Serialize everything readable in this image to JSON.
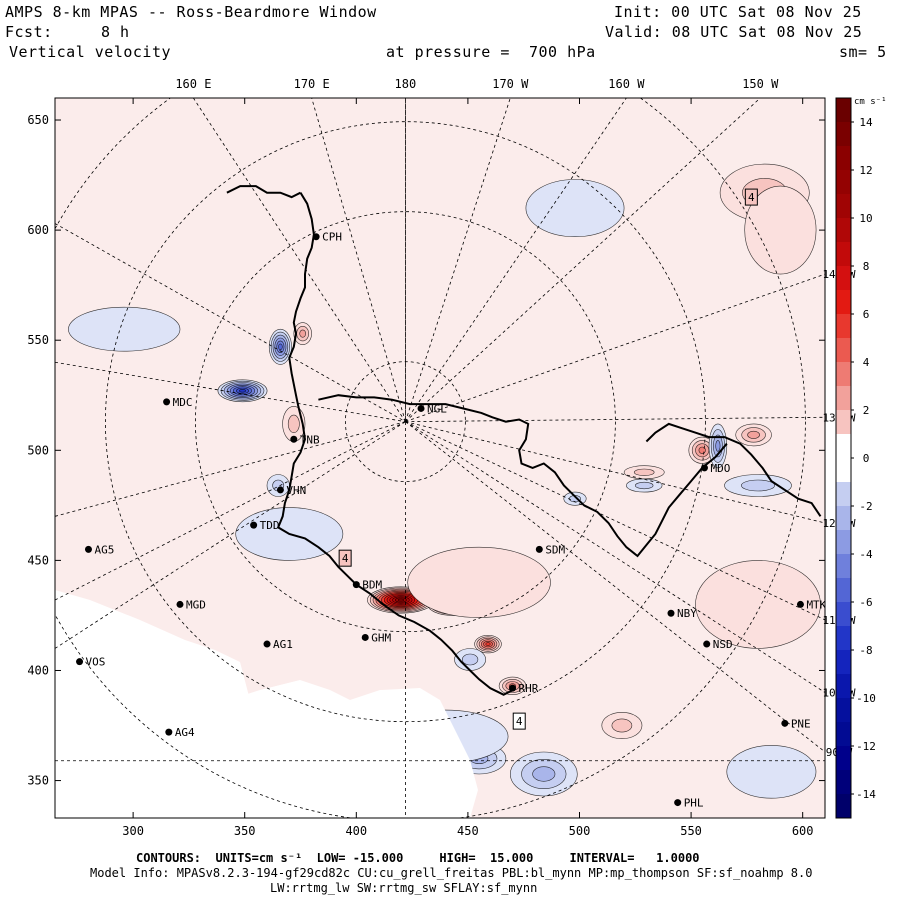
{
  "header": {
    "title": "AMPS 8-km MPAS -- Ross-Beardmore Window",
    "init": "Init: 00 UTC Sat 08 Nov 25",
    "fcst_label": "Fcst:",
    "fcst_value": "8 h",
    "valid": "Valid: 08 UTC Sat 08 Nov 25",
    "variable": "Vertical velocity",
    "pressure": "at pressure =  700 hPa",
    "smoothing": "sm= 5"
  },
  "footer": {
    "contours": "CONTOURS:  UNITS=cm s⁻¹  LOW= -15.000     HIGH=  15.000     INTERVAL=   1.0000",
    "model_info": "Model Info: MPASv8.2.3-194-gf29cd82c CU:cu_grell_freitas PBL:bl_mynn MP:mp_thompson SF:sf_noahmp 8.0",
    "model_info2": "LW:rrtmg_lw SW:rrtmg_sw SFLAY:sf_mynn"
  },
  "colors": {
    "pos_strong": "#8b0000",
    "pos_light": "#fbe0de",
    "neg_strong": "#00008b",
    "neg_light": "#dde3f7",
    "zero": "#ffffff"
  },
  "chart_data": {
    "type": "heatmap",
    "title": "Vertical velocity at pressure = 700 hPa",
    "x_axis": {
      "range": [
        265,
        610
      ],
      "ticks": [
        300,
        350,
        400,
        450,
        500,
        550,
        600
      ],
      "tick_labels": [
        "300",
        "350",
        "400",
        "450",
        "500",
        "550",
        "600"
      ]
    },
    "y_axis": {
      "range": [
        333,
        660
      ],
      "ticks": [
        350,
        400,
        450,
        500,
        550,
        600,
        650
      ],
      "tick_labels": [
        "350",
        "400",
        "450",
        "500",
        "550",
        "600",
        "650"
      ]
    },
    "longitude_labels_top": [
      {
        "label": "160 E",
        "x": 327
      },
      {
        "label": "170 E",
        "x": 380
      },
      {
        "label": "180",
        "x": 422
      },
      {
        "label": "170 W",
        "x": 469
      },
      {
        "label": "160 W",
        "x": 521
      },
      {
        "label": "150 W",
        "x": 581
      }
    ],
    "longitude_labels_right": [
      {
        "label": "140 W",
        "y": 580
      },
      {
        "label": "130 W",
        "y": 515
      },
      {
        "label": "120 W",
        "y": 467
      },
      {
        "label": "110 W",
        "y": 423
      },
      {
        "label": "100 W",
        "y": 390
      },
      {
        "label": "90 W",
        "y": 363
      }
    ],
    "colorbar": {
      "units": "cm s⁻¹",
      "low": -15,
      "high": 15,
      "interval": 1,
      "tick_labels": [
        14,
        12,
        10,
        8,
        6,
        4,
        2,
        0,
        -2,
        -4,
        -6,
        -8,
        -10,
        -12,
        -14
      ]
    },
    "stations": [
      {
        "id": "CPH",
        "x": 382,
        "y": 597
      },
      {
        "id": "MDC",
        "x": 315,
        "y": 522
      },
      {
        "id": "TNB",
        "x": 372,
        "y": 505
      },
      {
        "id": "NGL",
        "x": 429,
        "y": 519
      },
      {
        "id": "VHN",
        "x": 366,
        "y": 482
      },
      {
        "id": "TDD",
        "x": 354,
        "y": 466
      },
      {
        "id": "AG5",
        "x": 280,
        "y": 455
      },
      {
        "id": "SDM",
        "x": 482,
        "y": 455
      },
      {
        "id": "BDM",
        "x": 400,
        "y": 439
      },
      {
        "id": "MGD",
        "x": 321,
        "y": 430
      },
      {
        "id": "NBY",
        "x": 541,
        "y": 426
      },
      {
        "id": "MTK",
        "x": 599,
        "y": 430
      },
      {
        "id": "GHM",
        "x": 404,
        "y": 415
      },
      {
        "id": "AG1",
        "x": 360,
        "y": 412
      },
      {
        "id": "NSD",
        "x": 557,
        "y": 412
      },
      {
        "id": "VOS",
        "x": 276,
        "y": 404
      },
      {
        "id": "MDO",
        "x": 556,
        "y": 492
      },
      {
        "id": "RHR",
        "x": 470,
        "y": 392
      },
      {
        "id": "PNE",
        "x": 592,
        "y": 376
      },
      {
        "id": "AG4",
        "x": 316,
        "y": 372
      },
      {
        "id": "PHL",
        "x": 544,
        "y": 340
      }
    ],
    "extrema_labels": [
      {
        "text": "4",
        "x": 577,
        "y": 615,
        "sign": "positive"
      },
      {
        "text": "4",
        "x": 395,
        "y": 451,
        "sign": "positive"
      },
      {
        "text": "4",
        "x": 473,
        "y": 377,
        "sign": "negative"
      }
    ],
    "features": [
      {
        "sign": "positive",
        "value": 2,
        "x": 583,
        "y": 617,
        "rx": 20,
        "ry": 13
      },
      {
        "sign": "positive",
        "value": 12,
        "x": 420,
        "y": 432,
        "rx": 15,
        "ry": 6
      },
      {
        "sign": "positive",
        "value": 10,
        "x": 443,
        "y": 430,
        "rx": 11,
        "ry": 5
      },
      {
        "sign": "positive",
        "value": 6,
        "x": 459,
        "y": 412,
        "rx": 6,
        "ry": 4
      },
      {
        "sign": "positive",
        "value": 4,
        "x": 470,
        "y": 393,
        "rx": 6,
        "ry": 4
      },
      {
        "sign": "positive",
        "value": 4,
        "x": 555,
        "y": 500,
        "rx": 6,
        "ry": 6
      },
      {
        "sign": "positive",
        "value": 3,
        "x": 578,
        "y": 507,
        "rx": 8,
        "ry": 5
      },
      {
        "sign": "positive",
        "value": 2,
        "x": 529,
        "y": 490,
        "rx": 9,
        "ry": 3
      },
      {
        "sign": "positive",
        "value": 3,
        "x": 376,
        "y": 553,
        "rx": 4,
        "ry": 5
      },
      {
        "sign": "positive",
        "value": 2,
        "x": 372,
        "y": 512,
        "rx": 5,
        "ry": 8
      },
      {
        "sign": "positive",
        "value": 2,
        "x": 519,
        "y": 375,
        "rx": 9,
        "ry": 6
      },
      {
        "sign": "negative",
        "value": -8,
        "x": 349,
        "y": 527,
        "rx": 11,
        "ry": 5
      },
      {
        "sign": "negative",
        "value": -6,
        "x": 366,
        "y": 547,
        "rx": 5,
        "ry": 8
      },
      {
        "sign": "negative",
        "value": -4,
        "x": 386,
        "y": 461,
        "rx": 7,
        "ry": 4
      },
      {
        "sign": "negative",
        "value": -4,
        "x": 562,
        "y": 502,
        "rx": 4,
        "ry": 10
      },
      {
        "sign": "negative",
        "value": -3,
        "x": 484,
        "y": 353,
        "rx": 15,
        "ry": 10
      },
      {
        "sign": "negative",
        "value": -3,
        "x": 455,
        "y": 360,
        "rx": 12,
        "ry": 7
      },
      {
        "sign": "negative",
        "value": -2,
        "x": 451,
        "y": 405,
        "rx": 7,
        "ry": 5
      },
      {
        "sign": "negative",
        "value": -2,
        "x": 498,
        "y": 478,
        "rx": 5,
        "ry": 3
      },
      {
        "sign": "negative",
        "value": -2,
        "x": 529,
        "y": 484,
        "rx": 8,
        "ry": 3
      },
      {
        "sign": "negative",
        "value": -2,
        "x": 580,
        "y": 484,
        "rx": 15,
        "ry": 5
      },
      {
        "sign": "negative",
        "value": -2,
        "x": 365,
        "y": 484,
        "rx": 5,
        "ry": 5
      },
      {
        "sign": "negative",
        "value": -1,
        "x": 498,
        "y": 610,
        "rx": 22,
        "ry": 13
      },
      {
        "sign": "negative",
        "value": -1,
        "x": 296,
        "y": 555,
        "rx": 25,
        "ry": 10
      },
      {
        "sign": "negative",
        "value": -1,
        "x": 370,
        "y": 462,
        "rx": 24,
        "ry": 12
      },
      {
        "sign": "negative",
        "value": -1,
        "x": 440,
        "y": 370,
        "rx": 28,
        "ry": 12
      },
      {
        "sign": "negative",
        "value": -1,
        "x": 586,
        "y": 354,
        "rx": 20,
        "ry": 12
      },
      {
        "sign": "positive",
        "value": 1,
        "x": 580,
        "y": 430,
        "rx": 28,
        "ry": 20
      },
      {
        "sign": "positive",
        "value": 1,
        "x": 455,
        "y": 440,
        "rx": 32,
        "ry": 16
      },
      {
        "sign": "positive",
        "value": 1,
        "x": 590,
        "y": 600,
        "rx": 16,
        "ry": 20
      }
    ],
    "coastline": [
      [
        375,
        617
      ],
      [
        378,
        612
      ],
      [
        380,
        605
      ],
      [
        381,
        598
      ],
      [
        380,
        592
      ],
      [
        378,
        587
      ],
      [
        377,
        580
      ],
      [
        377,
        574
      ],
      [
        375,
        569
      ],
      [
        373,
        563
      ],
      [
        372,
        558
      ],
      [
        373,
        553
      ],
      [
        372,
        547
      ],
      [
        370,
        542
      ],
      [
        371,
        535
      ],
      [
        372,
        530
      ],
      [
        373,
        525
      ],
      [
        374,
        520
      ],
      [
        376,
        512
      ],
      [
        377,
        505
      ],
      [
        375,
        499
      ],
      [
        372,
        494
      ],
      [
        371,
        488
      ],
      [
        370,
        482
      ],
      [
        368,
        476
      ],
      [
        367,
        470
      ],
      [
        365,
        465
      ],
      [
        370,
        462
      ],
      [
        377,
        460
      ],
      [
        383,
        456
      ],
      [
        388,
        452
      ],
      [
        392,
        447
      ],
      [
        396,
        443
      ],
      [
        400,
        439
      ],
      [
        406,
        435
      ],
      [
        412,
        430
      ],
      [
        419,
        425
      ],
      [
        426,
        422
      ],
      [
        433,
        418
      ],
      [
        438,
        414
      ],
      [
        443,
        409
      ],
      [
        447,
        404
      ],
      [
        451,
        400
      ],
      [
        455,
        396
      ],
      [
        460,
        392
      ],
      [
        466,
        389
      ],
      [
        470,
        391
      ]
    ],
    "coastline2": [
      [
        383,
        523
      ],
      [
        392,
        525
      ],
      [
        400,
        524
      ],
      [
        408,
        524
      ],
      [
        416,
        523
      ],
      [
        424,
        521
      ],
      [
        432,
        521
      ],
      [
        440,
        521
      ],
      [
        448,
        519
      ],
      [
        456,
        517
      ],
      [
        461,
        515
      ],
      [
        467,
        513
      ],
      [
        473,
        514
      ],
      [
        477,
        512
      ],
      [
        476,
        505
      ],
      [
        473,
        500
      ],
      [
        474,
        494
      ],
      [
        479,
        492
      ],
      [
        484,
        494
      ],
      [
        489,
        490
      ],
      [
        493,
        484
      ],
      [
        497,
        480
      ],
      [
        502,
        475
      ],
      [
        508,
        472
      ],
      [
        513,
        467
      ],
      [
        517,
        461
      ],
      [
        521,
        456
      ],
      [
        526,
        452
      ],
      [
        530,
        457
      ],
      [
        534,
        462
      ],
      [
        537,
        468
      ],
      [
        540,
        474
      ],
      [
        545,
        480
      ],
      [
        550,
        486
      ],
      [
        555,
        492
      ],
      [
        561,
        497
      ],
      [
        566,
        503
      ]
    ],
    "coastline3": [
      [
        530,
        504
      ],
      [
        534,
        508
      ],
      [
        540,
        512
      ],
      [
        546,
        510
      ],
      [
        552,
        508
      ],
      [
        558,
        506
      ],
      [
        565,
        506
      ],
      [
        572,
        503
      ],
      [
        577,
        498
      ],
      [
        582,
        492
      ],
      [
        586,
        486
      ],
      [
        592,
        482
      ],
      [
        598,
        478
      ],
      [
        604,
        476
      ],
      [
        608,
        470
      ]
    ],
    "coastline4": [
      [
        342,
        617
      ],
      [
        348,
        620
      ],
      [
        355,
        620
      ],
      [
        360,
        617
      ],
      [
        366,
        617
      ],
      [
        371,
        615
      ],
      [
        375,
        617
      ]
    ]
  }
}
